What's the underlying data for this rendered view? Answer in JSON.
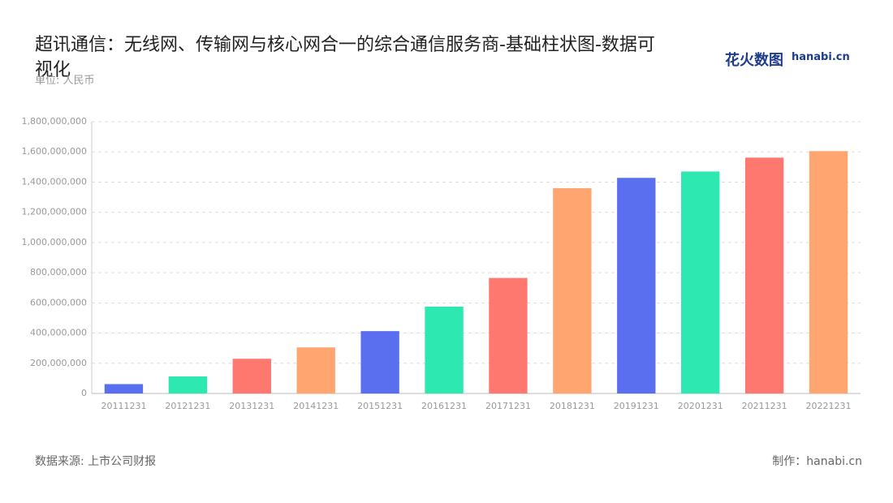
{
  "chart_data": {
    "type": "bar",
    "title": "超讯通信：无线网、传输网与核心网合一的综合通信服务商-基础柱状图-数据可视化",
    "subtitle": "单位: 人民币",
    "logo": "花火数图",
    "logo_domain": "hanabi.cn",
    "source": "数据来源: 上市公司财报",
    "credit": "制作：hanabi.cn",
    "categories": [
      "20111231",
      "20121231",
      "20131231",
      "20141231",
      "20151231",
      "20161231",
      "20171231",
      "20181231",
      "20191231",
      "20201231",
      "20211231",
      "20221231"
    ],
    "values": [
      62000000,
      113000000,
      230000000,
      305000000,
      413000000,
      575000000,
      765000000,
      1360000000,
      1428000000,
      1470000000,
      1562000000,
      1605000000
    ],
    "colors": [
      "#5a6ff0",
      "#2de8b0",
      "#ff7870",
      "#ffa570",
      "#5a6ff0",
      "#2de8b0",
      "#ff7870",
      "#ffa570",
      "#5a6ff0",
      "#2de8b0",
      "#ff7870",
      "#ffa570"
    ],
    "ylim": [
      0,
      1800000000
    ],
    "yticks": [
      0,
      {
        "value": 200000000,
        "label": "200,000,000"
      },
      {
        "value": 400000000,
        "label": "400,000,000"
      },
      {
        "value": 600000000,
        "label": "600,000,000"
      },
      {
        "value": 800000000,
        "label": "800,000,000"
      },
      {
        "value": 1000000000,
        "label": "1,000,000,000"
      },
      {
        "value": 1200000000,
        "label": "1,200,000,000"
      },
      {
        "value": 1400000000,
        "label": "1,400,000,000"
      },
      {
        "value": 1600000000,
        "label": "1,600,000,000"
      },
      {
        "value": 1800000000,
        "label": "1,800,000,000"
      }
    ],
    "grid": true
  }
}
